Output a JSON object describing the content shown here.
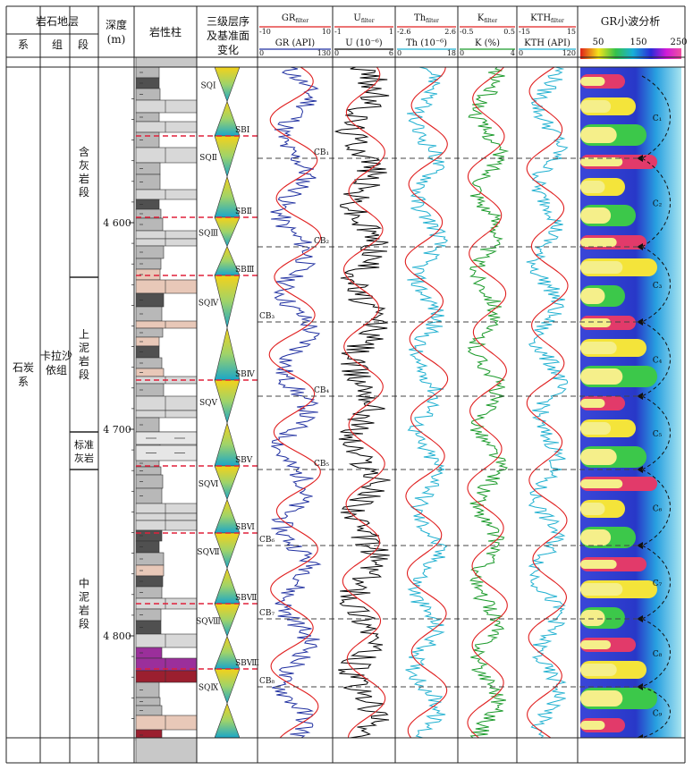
{
  "headers": {
    "strat": "岩石地层",
    "system": "系",
    "group": "组",
    "section": "段",
    "depth": "深度",
    "depth_unit": "(m)",
    "lith": "岩性柱",
    "seq": [
      "三级层序",
      "及基准面",
      "变化"
    ],
    "wavelet": "GR小波分析"
  },
  "logs": [
    {
      "filter_label": "GR",
      "filter_sub": "filter",
      "filter_min": "-10",
      "filter_max": "10",
      "raw_label": "GR (API)",
      "raw_min": "0",
      "raw_max": "130",
      "raw_color": "#1f2fa0",
      "filter_color": "#e02020"
    },
    {
      "filter_label": "U",
      "filter_sub": "filter",
      "filter_min": "-1",
      "filter_max": "1",
      "raw_label": "U (10⁻⁶)",
      "raw_min": "0",
      "raw_max": "6",
      "raw_color": "#000000",
      "filter_color": "#e02020"
    },
    {
      "filter_label": "Th",
      "filter_sub": "filter",
      "filter_min": "-2.6",
      "filter_max": "2.6",
      "raw_label": "Th (10⁻⁶)",
      "raw_min": "0",
      "raw_max": "18",
      "raw_color": "#1fb0d0",
      "filter_color": "#e02020"
    },
    {
      "filter_label": "K",
      "filter_sub": "filter",
      "filter_min": "-0.5",
      "filter_max": "0.5",
      "raw_label": "K (%)",
      "raw_min": "0",
      "raw_max": "4",
      "raw_color": "#1a9a2a",
      "filter_color": "#e02020"
    },
    {
      "filter_label": "KTH",
      "filter_sub": "filter",
      "filter_min": "-15",
      "filter_max": "15",
      "raw_label": "KTH (API)",
      "raw_min": "0",
      "raw_max": "120",
      "raw_color": "#1fb0d0",
      "filter_color": "#e02020"
    }
  ],
  "wavelet_scale": {
    "ticks": [
      "50",
      "150",
      "250"
    ]
  },
  "system_name": "石炭系",
  "group_name": "卡拉沙依组",
  "sections": [
    {
      "name": "含灰岩段",
      "top": 0,
      "bottom": 235
    },
    {
      "name": "上泥岩段",
      "top": 235,
      "bottom": 408
    },
    {
      "name": "标准灰岩",
      "top": 408,
      "bottom": 450
    },
    {
      "name": "中泥岩段",
      "top": 450,
      "bottom": 750
    }
  ],
  "depth_ticks": [
    {
      "label": "4 600",
      "depth": 4600
    },
    {
      "label": "4 700",
      "depth": 4700
    },
    {
      "label": "4 800",
      "depth": 4800
    }
  ],
  "sequences": [
    "SQⅠ",
    "SQⅡ",
    "SQⅢ",
    "SQⅣ",
    "SQⅤ",
    "SQⅥ",
    "SQⅦ",
    "SQⅧ",
    "SQⅨ"
  ],
  "sb_labels": [
    "SBⅠ",
    "SBⅡ",
    "SBⅢ",
    "SBⅣ",
    "SBⅤ",
    "SBⅥ",
    "SBⅦ",
    "SBⅧ"
  ],
  "cb_labels": [
    "CB₁",
    "CB₂",
    "CB₃",
    "CB₄",
    "CB₅",
    "CB₆",
    "CB₇",
    "CB₈"
  ],
  "cycles": [
    "C₁",
    "C₂",
    "C₃",
    "C₄",
    "C₅",
    "C₆",
    "C₇",
    "C₈",
    "C₉"
  ]
}
